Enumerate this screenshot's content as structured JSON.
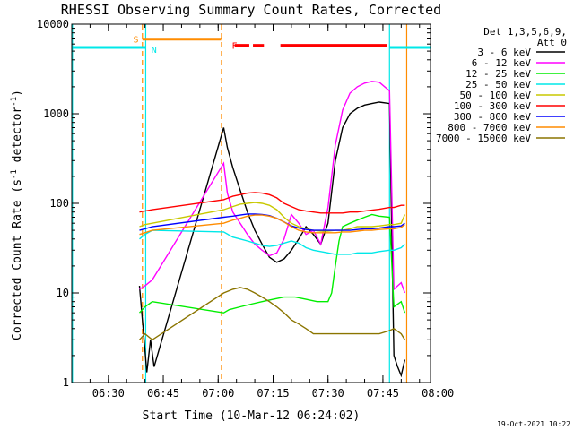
{
  "chart_data": {
    "type": "line",
    "title": "RHESSI Observing Summary Count Rates, Corrected",
    "xlabel": "Start Time (10-Mar-12 06:24:02)",
    "ylabel_main": "Corrected Count Rate (s",
    "ylabel_sup1": "-1",
    "ylabel_mid": " detector",
    "ylabel_sup2": "-1",
    "ylabel_end": ")",
    "y_scale": "log",
    "ylim": [
      1,
      10000
    ],
    "xlim_minutes": [
      -4,
      94
    ],
    "x_ticks": [
      {
        "label": "06:30",
        "min": 6
      },
      {
        "label": "06:45",
        "min": 21
      },
      {
        "label": "07:00",
        "min": 36
      },
      {
        "label": "07:15",
        "min": 51
      },
      {
        "label": "07:30",
        "min": 66
      },
      {
        "label": "07:45",
        "min": 81
      },
      {
        "label": "08:00",
        "min": 96
      }
    ],
    "y_ticks": [
      {
        "label": "1",
        "v": 1
      },
      {
        "label": "10",
        "v": 10
      },
      {
        "label": "100",
        "v": 100
      },
      {
        "label": "1000",
        "v": 1000
      },
      {
        "label": "10000",
        "v": 10000
      }
    ],
    "legend_header": [
      "Det 1,3,5,6,9,",
      "Att 0"
    ],
    "legend_placement": "right",
    "series": [
      {
        "name": "3 - 6 keV",
        "color": "#000000",
        "x": [
          14.5,
          15.5,
          16.5,
          17.5,
          18.5,
          37.5,
          38.5,
          40,
          42,
          44,
          46,
          48,
          50,
          52,
          54,
          56,
          58,
          60,
          62,
          64,
          66,
          68,
          70,
          72,
          74,
          76,
          78,
          80,
          82.8,
          84,
          85,
          86,
          87
        ],
        "y": [
          12,
          4,
          1.3,
          3,
          1.5,
          700,
          420,
          250,
          140,
          80,
          50,
          35,
          25,
          22,
          24,
          30,
          40,
          55,
          45,
          35,
          60,
          300,
          700,
          1000,
          1150,
          1250,
          1300,
          1350,
          1300,
          2,
          1.5,
          1.2,
          1.8
        ]
      },
      {
        "name": "6 - 12 keV",
        "color": "#ff00ff",
        "x": [
          14.5,
          16,
          18,
          37.5,
          38.5,
          40,
          42,
          44,
          46,
          48,
          50,
          52,
          54,
          56,
          58,
          60,
          62,
          64,
          66,
          68,
          70,
          72,
          74,
          76,
          78,
          80,
          82.8,
          84,
          85,
          86,
          87
        ],
        "y": [
          11,
          12,
          14,
          280,
          130,
          80,
          60,
          45,
          35,
          30,
          26,
          28,
          40,
          75,
          60,
          45,
          50,
          35,
          90,
          450,
          1100,
          1700,
          2000,
          2200,
          2300,
          2250,
          1800,
          11,
          12,
          13,
          10
        ]
      },
      {
        "name": "12 - 25 keV",
        "color": "#00ee00",
        "x": [
          14.5,
          16,
          18,
          37.5,
          39,
          42,
          45,
          48,
          51,
          54,
          57,
          60,
          63,
          66,
          67,
          68,
          69,
          70,
          72,
          74,
          76,
          78,
          80,
          82.8,
          84,
          86,
          87
        ],
        "y": [
          6,
          7,
          8,
          6,
          6.5,
          7,
          7.5,
          8,
          8.5,
          9,
          9,
          8.5,
          8,
          8,
          10,
          20,
          38,
          55,
          60,
          65,
          70,
          75,
          72,
          70,
          7,
          8,
          6
        ]
      },
      {
        "name": "25 - 50 keV",
        "color": "#00e8e8",
        "x": [
          14.5,
          16,
          18,
          37.5,
          40,
          42,
          44,
          46,
          48,
          50,
          52,
          54,
          56,
          58,
          60,
          62,
          64,
          66,
          68,
          70,
          72,
          74,
          76,
          78,
          80,
          82.8,
          84,
          86,
          87
        ],
        "y": [
          40,
          45,
          50,
          48,
          42,
          40,
          38,
          36,
          34,
          33,
          34,
          36,
          38,
          36,
          32,
          30,
          29,
          28,
          27,
          27,
          27,
          28,
          28,
          28,
          29,
          30,
          30,
          32,
          35
        ]
      },
      {
        "name": "50 - 100 keV",
        "color": "#c8c800",
        "x": [
          14.5,
          16,
          18,
          37.5,
          40,
          42,
          44,
          46,
          48,
          50,
          52,
          54,
          56,
          58,
          60,
          62,
          64,
          66,
          68,
          70,
          72,
          74,
          76,
          78,
          80,
          82.8,
          84,
          86,
          87
        ],
        "y": [
          55,
          58,
          60,
          85,
          92,
          98,
          100,
          102,
          100,
          95,
          85,
          70,
          60,
          55,
          52,
          50,
          49,
          49,
          50,
          50,
          52,
          55,
          55,
          55,
          56,
          58,
          58,
          60,
          75
        ]
      },
      {
        "name": "100 - 300 keV",
        "color": "#ff0000",
        "x": [
          14.5,
          16,
          18,
          37.5,
          40,
          42,
          44,
          46,
          48,
          50,
          52,
          54,
          56,
          58,
          60,
          62,
          64,
          66,
          68,
          70,
          72,
          74,
          76,
          78,
          80,
          82.8,
          84,
          86,
          87
        ],
        "y": [
          80,
          82,
          85,
          110,
          120,
          125,
          130,
          132,
          130,
          125,
          115,
          100,
          92,
          85,
          82,
          80,
          78,
          78,
          78,
          78,
          80,
          80,
          82,
          84,
          86,
          90,
          90,
          95,
          95
        ]
      },
      {
        "name": "300 - 800 keV",
        "color": "#0000ff",
        "x": [
          14.5,
          16,
          18,
          37.5,
          40,
          42,
          44,
          46,
          48,
          50,
          52,
          54,
          56,
          58,
          60,
          62,
          64,
          66,
          68,
          70,
          72,
          74,
          76,
          78,
          80,
          82.8,
          84,
          86,
          87
        ],
        "y": [
          50,
          52,
          55,
          70,
          72,
          74,
          76,
          76,
          75,
          73,
          68,
          62,
          56,
          53,
          51,
          50,
          50,
          50,
          50,
          50,
          50,
          51,
          52,
          52,
          53,
          55,
          55,
          56,
          60
        ]
      },
      {
        "name": "800 - 7000 keV",
        "color": "#ff8c00",
        "x": [
          14.5,
          16,
          18,
          37.5,
          40,
          42,
          44,
          46,
          48,
          50,
          52,
          54,
          56,
          58,
          60,
          62,
          64,
          66,
          68,
          70,
          72,
          74,
          76,
          78,
          80,
          82.8,
          84,
          86,
          87
        ],
        "y": [
          45,
          47,
          50,
          60,
          65,
          68,
          72,
          74,
          74,
          72,
          68,
          62,
          55,
          50,
          48,
          47,
          47,
          47,
          47,
          48,
          48,
          49,
          50,
          50,
          51,
          52,
          52,
          54,
          58
        ]
      },
      {
        "name": "7000 - 15000 keV",
        "color": "#8b7500",
        "x": [
          14.5,
          16,
          18,
          37.5,
          40,
          42,
          44,
          46,
          48,
          50,
          52,
          54,
          56,
          58,
          60,
          62,
          64,
          66,
          68,
          70,
          72,
          74,
          76,
          78,
          80,
          82.8,
          84,
          86,
          87
        ],
        "y": [
          3,
          3.5,
          3,
          10,
          11,
          11.5,
          11,
          10,
          9,
          8,
          7,
          6,
          5,
          4.5,
          4,
          3.5,
          3.5,
          3.5,
          3.5,
          3.5,
          3.5,
          3.5,
          3.5,
          3.5,
          3.5,
          3.8,
          4,
          3.5,
          3
        ]
      }
    ],
    "annotations": [
      {
        "label": "S",
        "color": "#ff8c00",
        "x_min": 14.5,
        "x_end": 36.8,
        "y": 6800
      },
      {
        "label": "N",
        "color": "#00e8e8",
        "x_min": 17,
        "x_end": null,
        "y": 5500
      },
      {
        "label": "F",
        "color": "#ff0000",
        "x_min": 39,
        "x_end": 82,
        "y": 5800
      }
    ],
    "event_lines": [
      {
        "color": "#00e8e8",
        "x_min": -3.8,
        "style": "solid"
      },
      {
        "color": "#00e8e8",
        "x_min": 16.2,
        "style": "solid"
      },
      {
        "color": "#ff8c00",
        "x_min": 15.3,
        "style": "dashed"
      },
      {
        "color": "#ff8c00",
        "x_min": 36.9,
        "style": "dashed"
      },
      {
        "color": "#00e8e8",
        "x_min": 82.8,
        "style": "solid"
      },
      {
        "color": "#ff8c00",
        "x_min": 87.5,
        "style": "solid"
      },
      {
        "color": "#00e8e8",
        "x_min": 95.4,
        "style": "dashed"
      }
    ],
    "night_bars": [
      {
        "color": "#00e8e8",
        "x_from": -4,
        "x_to": 16.2,
        "y": 5500
      },
      {
        "color": "#00e8e8",
        "x_from": 82.8,
        "x_to": 95.4,
        "y": 5500
      }
    ],
    "footer_date": "19-Oct-2021 10:22"
  }
}
